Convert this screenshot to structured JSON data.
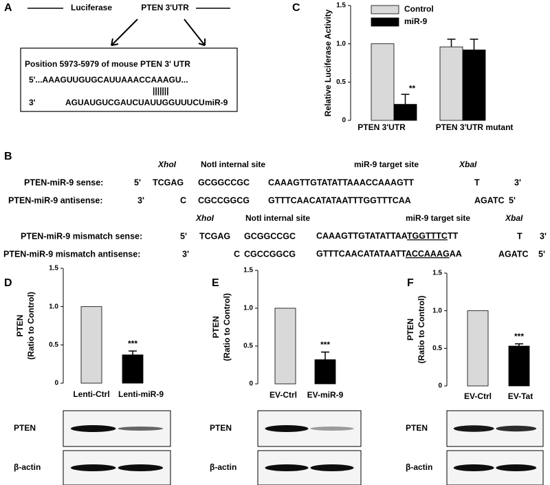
{
  "panel_a": {
    "label": "A",
    "luciferase": "Luciferase",
    "utr": "PTEN 3'UTR",
    "box_title": "Position 5973-5979 of mouse PTEN 3' UTR",
    "target": "5'...AAAGUUGUGCAUUAAACCAAAGU...",
    "pairing": "|||||||",
    "mirna_end": "3'",
    "mirna_seq": "AGUAUGUCGAUCUAUUGGUUUCU",
    "mirna_name": "miR-9"
  },
  "panel_b": {
    "label": "B",
    "rows": [
      [
        "XhoI",
        "NotI internal site",
        "miR-9 target site",
        "XbaI"
      ],
      [
        "PTEN-miR-9 sense:",
        "5'",
        "TCGAG",
        "GCGGCCGC",
        "CAAAGTTGTATATTAAACCAAAGTT",
        "T",
        "3'"
      ],
      [
        "PTEN-miR-9 antisense:",
        "3'",
        "C",
        "CGCCGGCG",
        "GTTTCAACATATAATTTGGTTTCAA",
        "AGATC",
        "5'"
      ],
      [
        "XhoI",
        "NotI internal site",
        "miR-9 target site",
        "XbaI"
      ],
      [
        "PTEN-miR-9 mismatch sense:",
        "5'",
        "TCGAG",
        "GCGGCCGC",
        "CAAAGTTGTATATTAA",
        "TGGTTTC",
        "TT",
        "T",
        "3'"
      ],
      [
        "PTEN-miR-9 mismatch antisense:",
        "3'",
        "C",
        "CGCCGGCG",
        "GTTTCAACATATAATT",
        "ACCAAAG",
        "AA",
        "AGATC",
        "5'"
      ]
    ]
  },
  "blots": [
    [
      "PTEN",
      "β-actin"
    ],
    [
      "PTEN",
      "β-actin"
    ],
    [
      "PTEN",
      "β-actin"
    ]
  ],
  "chart_data": [
    {
      "type": "grouped_bar",
      "label": "C",
      "ylabel": [
        "Relative Luciferase Activity"
      ],
      "categories": [
        "PTEN 3'UTR",
        "PTEN 3'UTR mutant"
      ],
      "series": [
        {
          "name": "Control",
          "color": "#d9d9d9",
          "values": [
            1,
            0.96
          ],
          "errors": [
            null,
            0.1
          ]
        },
        {
          "name": "miR-9",
          "color": "#000000",
          "values": [
            0.21,
            0.92
          ],
          "errors": [
            0.13,
            0.14
          ]
        }
      ],
      "annotation": "**",
      "ylim": [
        0,
        1.5
      ],
      "yticks": [
        0,
        0.5,
        {
          "value": 1,
          "label": "1.0"
        },
        1.5
      ]
    },
    {
      "type": "bar",
      "label": "D",
      "ylabel": [
        "PTEN",
        "(Ratio to Control)"
      ],
      "categories": [
        "Lenti-Ctrl",
        "Lenti-miR-9"
      ],
      "values": [
        1,
        0.37
      ],
      "errors": [
        null,
        0.05
      ],
      "colors": [
        "#d9d9d9",
        "#000000"
      ],
      "annotation": "***",
      "ylim": [
        0,
        1.5
      ],
      "yticks": [
        0,
        0.5,
        {
          "value": 1,
          "label": "1.0"
        },
        1.5
      ]
    },
    {
      "type": "bar",
      "label": "E",
      "ylabel": [
        "PTEN",
        "(Ratio to Control)"
      ],
      "categories": [
        "EV-Ctrl",
        "EV-miR-9"
      ],
      "values": [
        1,
        0.32
      ],
      "errors": [
        null,
        0.1
      ],
      "colors": [
        "#d9d9d9",
        "#000000"
      ],
      "annotation": "***",
      "ylim": [
        0,
        1.5
      ],
      "yticks": [
        0,
        0.5,
        {
          "value": 1,
          "label": "1.0"
        },
        1.5
      ]
    },
    {
      "type": "bar",
      "label": "F",
      "ylabel": [
        "PTEN",
        "(Ratio to Control)"
      ],
      "categories": [
        "EV-Ctrl",
        "EV-Tat"
      ],
      "values": [
        1,
        0.53
      ],
      "errors": [
        null,
        0.03
      ],
      "colors": [
        "#d9d9d9",
        "#000000"
      ],
      "annotation": "***",
      "ylim": [
        0,
        1.5
      ],
      "yticks": [
        0,
        0.5,
        {
          "value": 1,
          "label": "1.0"
        },
        1.5
      ]
    }
  ]
}
